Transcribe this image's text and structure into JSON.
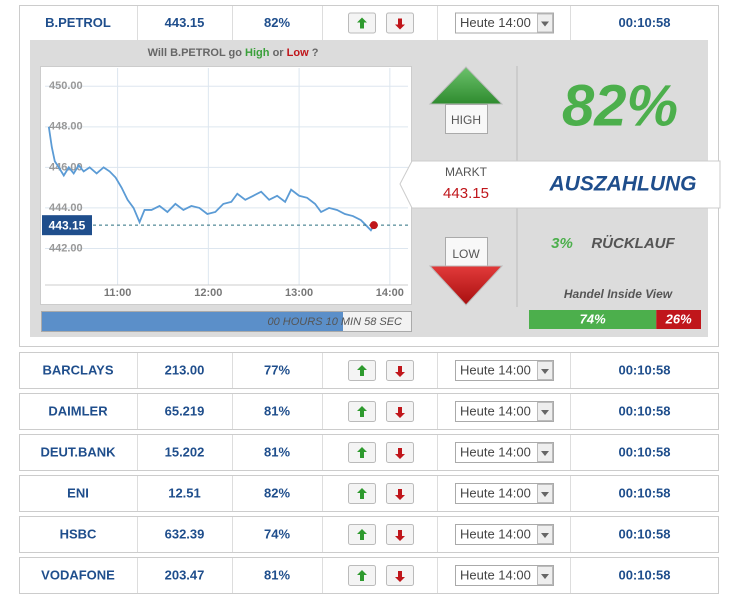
{
  "rows": [
    {
      "name": "B.PETROL",
      "price": "443.15",
      "percent": "82%",
      "expiry": "Heute 14:00",
      "time": "00:10:58"
    },
    {
      "name": "BARCLAYS",
      "price": "213.00",
      "percent": "77%",
      "expiry": "Heute 14:00",
      "time": "00:10:58"
    },
    {
      "name": "DAIMLER",
      "price": "65.219",
      "percent": "81%",
      "expiry": "Heute 14:00",
      "time": "00:10:58"
    },
    {
      "name": "DEUT.BANK",
      "price": "15.202",
      "percent": "81%",
      "expiry": "Heute 14:00",
      "time": "00:10:58"
    },
    {
      "name": "ENI",
      "price": "12.51",
      "percent": "82%",
      "expiry": "Heute 14:00",
      "time": "00:10:58"
    },
    {
      "name": "HSBC",
      "price": "632.39",
      "percent": "74%",
      "expiry": "Heute 14:00",
      "time": "00:10:58"
    },
    {
      "name": "VODAFONE",
      "price": "203.47",
      "percent": "81%",
      "expiry": "Heute 14:00",
      "time": "00:10:58"
    }
  ],
  "panel": {
    "question": {
      "prefix": "Will B.PETROL go",
      "high": "High",
      "or": "or",
      "low": "Low",
      "suffix": "?"
    },
    "high_button": "HIGH",
    "low_button": "LOW",
    "markt_label": "MARKT",
    "markt_value": "443.15",
    "payout": "82%",
    "payout_label": "AUSZAHLUNG",
    "refund": "3%",
    "refund_label": "RÜCKLAUF",
    "countdown": "00 HOURS 10 MIN 58 SEC",
    "sentiment_title": "Handel Inside View",
    "sentiment": {
      "high": {
        "value": 74,
        "label": "74%"
      },
      "low": {
        "value": 26,
        "label": "26%"
      }
    }
  },
  "chart_data": {
    "type": "line",
    "color": "#5b9bd5",
    "x": [
      10.242,
      10.275,
      10.308,
      10.352,
      10.407,
      10.462,
      10.516,
      10.571,
      10.626,
      10.692,
      10.769,
      10.846,
      10.912,
      10.978,
      11.044,
      11.11,
      11.176,
      11.242,
      11.297,
      11.374,
      11.462,
      11.549,
      11.637,
      11.725,
      11.813,
      11.901,
      11.989,
      12.077,
      12.165,
      12.253,
      12.319,
      12.407,
      12.495,
      12.582,
      12.67,
      12.758,
      12.846,
      12.912,
      13.0,
      13.088,
      13.176,
      13.242,
      13.33,
      13.418,
      13.505,
      13.593,
      13.681,
      13.747,
      13.791,
      13.824
    ],
    "values": [
      448.0,
      447.0,
      446.3,
      446.0,
      445.6,
      446.0,
      445.7,
      446.1,
      445.8,
      446.0,
      445.7,
      446.0,
      445.8,
      445.5,
      445.0,
      444.4,
      444.0,
      443.3,
      443.9,
      443.9,
      444.1,
      443.8,
      444.2,
      443.9,
      444.1,
      444.0,
      443.7,
      443.8,
      444.2,
      444.3,
      444.7,
      444.4,
      444.6,
      444.8,
      444.4,
      444.6,
      444.3,
      444.9,
      444.6,
      444.5,
      444.2,
      443.8,
      444.0,
      443.9,
      443.7,
      443.6,
      443.4,
      443.1,
      442.9,
      443.15
    ],
    "xlim": [
      10.2,
      14.2
    ],
    "ylim": [
      440.2,
      450.9
    ],
    "xticks": [
      {
        "value": 11,
        "label": "11:00"
      },
      {
        "value": 12,
        "label": "12:00"
      },
      {
        "value": 13,
        "label": "13:00"
      },
      {
        "value": 14,
        "label": "14:00"
      }
    ],
    "yticks": [
      {
        "value": 442,
        "label": "442.00"
      },
      {
        "value": 444,
        "label": "444.00"
      },
      {
        "value": 446,
        "label": "446.00"
      },
      {
        "value": 448,
        "label": "448.00"
      },
      {
        "value": 450,
        "label": "450.00"
      }
    ],
    "grid": true,
    "current_value": 443.15,
    "current_color": "#c0161b"
  }
}
